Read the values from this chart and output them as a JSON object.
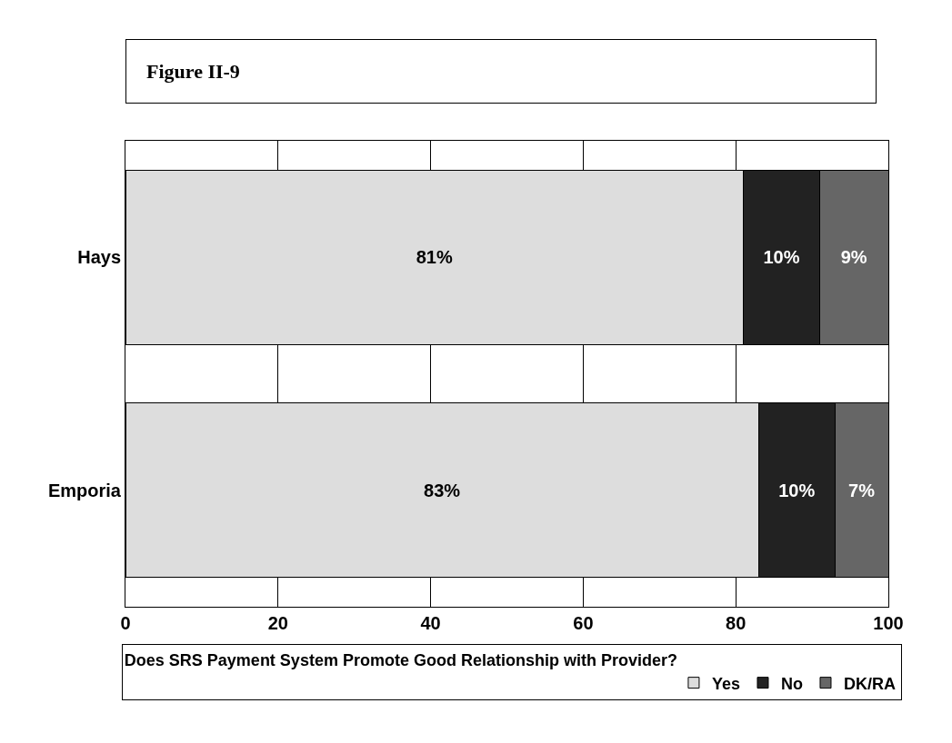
{
  "chart_data": {
    "type": "bar",
    "orientation": "horizontal",
    "stacked": true,
    "title": "Figure II-9",
    "legend_title": "Does SRS Payment System Promote Good Relationship with Provider?",
    "categories": [
      "Hays",
      "Emporia"
    ],
    "series": [
      {
        "name": "Yes",
        "color": "#dddddd",
        "values": [
          81,
          83
        ],
        "value_labels": [
          "81%",
          "83%"
        ]
      },
      {
        "name": "No",
        "color": "#222222",
        "values": [
          10,
          10
        ],
        "value_labels": [
          "10%",
          "10%"
        ]
      },
      {
        "name": "DK/RA",
        "color": "#666666",
        "values": [
          9,
          7
        ],
        "value_labels": [
          "9%",
          "7%"
        ]
      }
    ],
    "xlim": [
      0,
      100
    ],
    "xticks": [
      0,
      20,
      40,
      60,
      80,
      100
    ],
    "grid": "x",
    "legend": "bottom"
  }
}
